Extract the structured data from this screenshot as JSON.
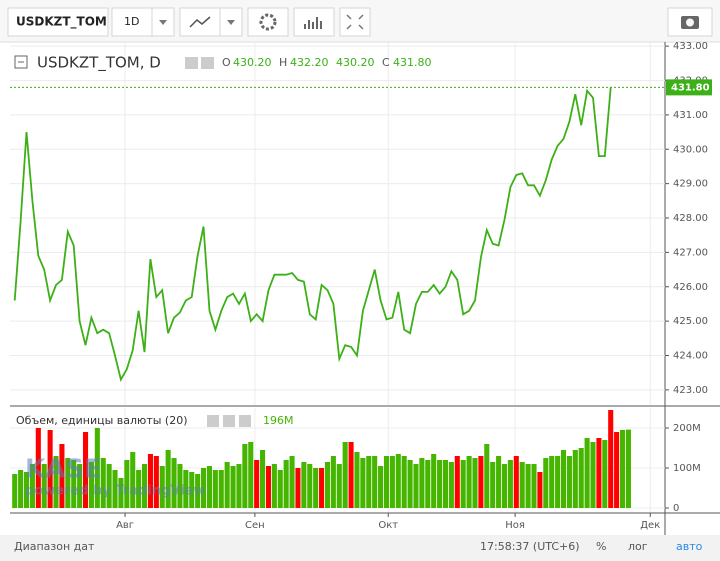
{
  "toolbar": {
    "symbol": "USDKZT_TOM",
    "interval": "1D"
  },
  "watermark": {
    "logo": "KASE",
    "text": "powered by TradingView"
  },
  "footer": {
    "range": "Диапазон дат",
    "time": "17:58:37 (UTC+6)",
    "percent": "%",
    "log": "лог",
    "auto": "авто"
  },
  "chart_data": [
    {
      "type": "line",
      "title": "USDKZT_TOM, D",
      "color": "#3cb016",
      "legend_items": [
        {
          "label": "O",
          "value": "430.20"
        },
        {
          "label": "H",
          "value": "432.20"
        },
        {
          "value": "430.20"
        },
        {
          "label": "C",
          "value": "431.80"
        }
      ],
      "last_label": "431.80",
      "values": [
        425.6,
        427.9,
        430.5,
        428.5,
        426.9,
        426.5,
        425.6,
        426.05,
        426.2,
        427.6,
        427.2,
        425.0,
        424.3,
        425.1,
        424.65,
        424.75,
        424.65,
        424.0,
        423.3,
        423.6,
        424.15,
        425.3,
        424.1,
        426.8,
        425.7,
        425.9,
        424.65,
        425.1,
        425.25,
        425.6,
        425.7,
        426.9,
        427.75,
        425.3,
        424.75,
        425.3,
        425.7,
        425.8,
        425.5,
        425.8,
        425.0,
        425.2,
        425.0,
        425.9,
        426.35,
        426.35,
        426.35,
        426.4,
        426.2,
        426.15,
        425.2,
        425.05,
        426.05,
        425.9,
        425.5,
        423.9,
        424.3,
        424.25,
        424.0,
        425.3,
        425.9,
        426.5,
        425.6,
        425.05,
        425.1,
        425.85,
        424.75,
        424.65,
        425.5,
        425.85,
        425.85,
        426.05,
        425.8,
        426.0,
        426.45,
        426.2,
        425.2,
        425.3,
        425.6,
        426.85,
        427.65,
        427.25,
        427.2,
        427.95,
        428.9,
        429.25,
        429.3,
        428.95,
        428.95,
        428.65,
        429.1,
        429.7,
        430.1,
        430.3,
        430.8,
        431.6,
        430.7,
        431.7,
        431.5,
        429.8,
        429.8,
        431.8
      ],
      "xlim": [
        -0.8,
        110.2
      ],
      "xticks": [
        {
          "value": 18.7,
          "label": "Авг"
        },
        {
          "value": 40.7,
          "label": "Сен"
        },
        {
          "value": 63.3,
          "label": "Окт"
        },
        {
          "value": 84.8,
          "label": "Ноя"
        },
        {
          "value": 107.7,
          "label": "Дек"
        }
      ],
      "ylim": [
        422.56,
        433.12
      ],
      "yticks": [
        {
          "value": 423,
          "label": "423.00"
        },
        {
          "value": 424,
          "label": "424.00"
        },
        {
          "value": 425,
          "label": "425.00"
        },
        {
          "value": 426,
          "label": "426.00"
        },
        {
          "value": 427,
          "label": "427.00"
        },
        {
          "value": 428,
          "label": "428.00"
        },
        {
          "value": 429,
          "label": "429.00"
        },
        {
          "value": 430,
          "label": "430.00"
        },
        {
          "value": 431,
          "label": "431.00"
        },
        {
          "value": 432,
          "label": "432.00"
        },
        {
          "value": 433,
          "label": "433.00"
        }
      ],
      "grid": true
    },
    {
      "type": "bar",
      "title": "Объем, единицы валюты (20)",
      "last_label": "196M",
      "values": [
        85,
        95,
        90,
        110,
        200,
        110,
        195,
        130,
        160,
        125,
        120,
        110,
        190,
        115,
        200,
        125,
        110,
        95,
        75,
        120,
        140,
        95,
        110,
        135,
        130,
        105,
        145,
        125,
        110,
        95,
        90,
        85,
        100,
        105,
        95,
        95,
        115,
        105,
        110,
        160,
        165,
        120,
        145,
        105,
        110,
        95,
        120,
        130,
        100,
        115,
        110,
        100,
        100,
        115,
        130,
        110,
        165,
        165,
        140,
        125,
        130,
        130,
        105,
        130,
        130,
        135,
        130,
        120,
        110,
        125,
        120,
        135,
        120,
        120,
        115,
        130,
        120,
        130,
        125,
        130,
        160,
        115,
        130,
        110,
        120,
        130,
        115,
        110,
        110,
        90,
        125,
        130,
        130,
        145,
        130,
        145,
        150,
        175,
        165,
        175,
        170,
        245,
        190,
        195,
        196
      ],
      "colors": [
        "#45b500",
        "#45b500",
        "#45b500",
        "#45b500",
        "#ff0000",
        "#45b500",
        "#ff0000",
        "#45b500",
        "#ff0000",
        "#45b500",
        "#45b500",
        "#45b500",
        "#ff0000",
        "#45b500",
        "#45b500",
        "#45b500",
        "#45b500",
        "#45b500",
        "#45b500",
        "#45b500",
        "#45b500",
        "#45b500",
        "#45b500",
        "#ff0000",
        "#ff0000",
        "#45b500",
        "#45b500",
        "#45b500",
        "#45b500",
        "#45b500",
        "#45b500",
        "#45b500",
        "#45b500",
        "#45b500",
        "#45b500",
        "#45b500",
        "#45b500",
        "#45b500",
        "#45b500",
        "#45b500",
        "#45b500",
        "#ff0000",
        "#45b500",
        "#ff0000",
        "#45b500",
        "#45b500",
        "#45b500",
        "#45b500",
        "#ff0000",
        "#45b500",
        "#45b500",
        "#45b500",
        "#ff0000",
        "#45b500",
        "#45b500",
        "#45b500",
        "#45b500",
        "#ff0000",
        "#45b500",
        "#45b500",
        "#45b500",
        "#45b500",
        "#45b500",
        "#45b500",
        "#45b500",
        "#45b500",
        "#45b500",
        "#45b500",
        "#45b500",
        "#45b500",
        "#45b500",
        "#45b500",
        "#45b500",
        "#45b500",
        "#45b500",
        "#ff0000",
        "#45b500",
        "#45b500",
        "#45b500",
        "#ff0000",
        "#45b500",
        "#45b500",
        "#45b500",
        "#45b500",
        "#45b500",
        "#ff0000",
        "#45b500",
        "#45b500",
        "#45b500",
        "#ff0000",
        "#45b500",
        "#45b500",
        "#45b500",
        "#45b500",
        "#45b500",
        "#45b500",
        "#45b500",
        "#45b500",
        "#45b500",
        "#ff0000",
        "#45b500",
        "#ff0000",
        "#ff0000",
        "#45b500",
        "#45b500"
      ],
      "xlim": [
        -0.8,
        110.2
      ],
      "ylim": [
        -10,
        250
      ],
      "yticks": [
        0,
        {
          "value": 100,
          "label": "100M"
        },
        {
          "value": 200,
          "label": "200M"
        }
      ],
      "grid": true
    }
  ]
}
